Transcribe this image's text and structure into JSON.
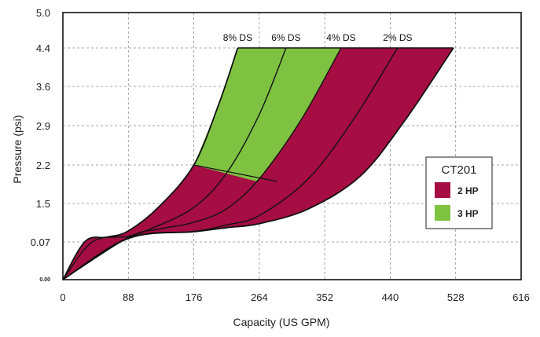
{
  "chart_data": {
    "type": "area",
    "xlabel": "Capacity (US GPM)",
    "ylabel": "Pressure (psi)",
    "x_ticks": [
      "0",
      "88",
      "176",
      "264",
      "352",
      "440",
      "528",
      "616"
    ],
    "y_ticks": [
      "0.00",
      "0.07",
      "1.5",
      "2.2",
      "2.9",
      "3.6",
      "4.4",
      "5.0"
    ],
    "xlim": [
      0,
      616
    ],
    "grid": true,
    "legend": {
      "title": "CT201",
      "placement": "right",
      "items": [
        {
          "label": "2 HP",
          "color": "#a50d43"
        },
        {
          "label": "3 HP",
          "color": "#7fc242"
        }
      ]
    },
    "series": [
      {
        "name": "8% DS",
        "x": [
          0,
          30,
          60,
          88,
          130,
          176,
          210,
          235
        ],
        "y": [
          0.0,
          0.09,
          0.25,
          0.48,
          1.4,
          2.2,
          3.3,
          4.4
        ]
      },
      {
        "name": "6% DS",
        "x": [
          0,
          40,
          88,
          120,
          176,
          220,
          264,
          300
        ],
        "y": [
          0.0,
          0.08,
          0.28,
          0.58,
          1.35,
          2.05,
          3.1,
          4.4
        ]
      },
      {
        "name": "4% DS",
        "x": [
          0,
          88,
          130,
          176,
          220,
          264,
          320,
          374
        ],
        "y": [
          0.0,
          0.24,
          0.55,
          0.8,
          1.3,
          1.95,
          3.0,
          4.4
        ]
      },
      {
        "name": "2% DS",
        "x": [
          0,
          88,
          176,
          220,
          264,
          330,
          390,
          450
        ],
        "y": [
          0.0,
          0.22,
          0.46,
          0.7,
          1.05,
          1.95,
          3.0,
          4.4
        ]
      },
      {
        "name": "",
        "x": [
          0,
          88,
          176,
          220,
          264,
          330,
          400,
          460,
          525
        ],
        "y": [
          0.0,
          0.2,
          0.45,
          0.6,
          0.75,
          1.3,
          2.0,
          3.0,
          4.4
        ]
      }
    ],
    "region_boundary": {
      "x": [
        176,
        288
      ],
      "y": [
        2.2,
        1.9
      ]
    }
  }
}
